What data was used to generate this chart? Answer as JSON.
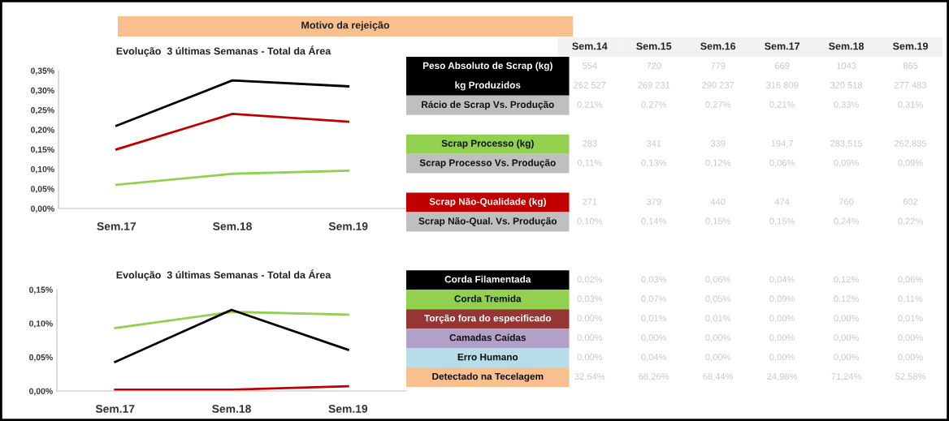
{
  "chart_data": [
    {
      "type": "line",
      "title": "Evolução  3 últimas Semanas - Total da Área",
      "annotations": [
        "Motivo da rejeição"
      ],
      "categories": [
        "Sem.17",
        "Sem.18",
        "Sem.19"
      ],
      "series": [
        {
          "color": "#000000",
          "values": [
            0.21,
            0.325,
            0.31
          ]
        },
        {
          "color": "#c00000",
          "values": [
            0.15,
            0.24,
            0.22
          ]
        },
        {
          "color": "#92d050",
          "values": [
            0.06,
            0.088,
            0.096
          ]
        }
      ],
      "ylim": [
        0,
        0.35
      ],
      "yticks": [
        {
          "value": 0,
          "label": "0,00%"
        },
        {
          "value": 0.05,
          "label": "0,05%"
        },
        {
          "value": 0.1,
          "label": "0,10%"
        },
        {
          "value": 0.15,
          "label": "0,15%"
        },
        {
          "value": 0.2,
          "label": "0,20%"
        },
        {
          "value": 0.25,
          "label": "0,25%"
        },
        {
          "value": 0.3,
          "label": "0,30%"
        },
        {
          "value": 0.35,
          "label": "0,35%"
        }
      ],
      "grid": false,
      "marker": "none",
      "line_style": "solid"
    },
    {
      "type": "line",
      "title": "Evolução  3 últimas Semanas - Total da Área",
      "categories": [
        "Sem.17",
        "Sem.18",
        "Sem.19"
      ],
      "series": [
        {
          "color": "#92d050",
          "values": [
            0.093,
            0.117,
            0.113
          ]
        },
        {
          "color": "#000000",
          "values": [
            0.043,
            0.12,
            0.061
          ]
        },
        {
          "color": "#c00000",
          "values": [
            0.002,
            0.002,
            0.007
          ]
        }
      ],
      "ylim": [
        0,
        0.15
      ],
      "yticks": [
        {
          "value": 0,
          "label": "0,00%"
        },
        {
          "value": 0.05,
          "label": "0,05%"
        },
        {
          "value": 0.1,
          "label": "0,10%"
        },
        {
          "value": 0.15,
          "label": "0,15%"
        }
      ],
      "grid": false,
      "marker": "none",
      "line_style": "solid"
    },
    {
      "type": "other",
      "categories": [
        "Sem.14",
        "Sem.15",
        "Sem.16",
        "Sem.17",
        "Sem.18",
        "Sem.19"
      ],
      "y_categories": [
        "Peso Absoluto de Scrap (kg)",
        "kg Produzidos",
        "Rácio de Scrap Vs. Produção",
        null,
        "Scrap Processo (kg)",
        "Scrap Processo Vs. Produção",
        null,
        "Scrap Não-Qualidade (kg)",
        "Scrap Não-Qual. Vs. Produção",
        null,
        null,
        "Corda Filamentada",
        "Corda Tremida",
        "Torção fora do especificado",
        "Camadas Caídas",
        "Erro Humano",
        "Detectado na Tecelagem"
      ],
      "cell_labels": [
        [
          "554",
          "720",
          "779",
          "669",
          "1043",
          "865"
        ],
        [
          "262 527",
          "269 231",
          "290 237",
          "316 809",
          "320 518",
          "277 483"
        ],
        [
          "0,21%",
          "0,27%",
          "0,27%",
          "0,21%",
          "0,33%",
          "0,31%"
        ],
        [
          null,
          null,
          null,
          null,
          null,
          null
        ],
        [
          "283",
          "341",
          "339",
          "194,7",
          "283,515",
          "262,835"
        ],
        [
          "0,11%",
          "0,13%",
          "0,12%",
          "0,06%",
          "0,09%",
          "0,09%"
        ],
        [
          null,
          null,
          null,
          null,
          null,
          null
        ],
        [
          "271",
          "379",
          "440",
          "474",
          "760",
          "602"
        ],
        [
          "0,10%",
          "0,14%",
          "0,15%",
          "0,15%",
          "0,24%",
          "0,22%"
        ],
        [
          null,
          null,
          null,
          null,
          null,
          null
        ],
        [
          null,
          null,
          null,
          null,
          null,
          null
        ],
        [
          "0,02%",
          "0,03%",
          "0,06%",
          "0,04%",
          "0,12%",
          "0,06%"
        ],
        [
          "0,03%",
          "0,07%",
          "0,05%",
          "0,09%",
          "0,12%",
          "0,11%"
        ],
        [
          "0,00%",
          "0,01%",
          "0,01%",
          "0,00%",
          "0,00%",
          "0,01%"
        ],
        [
          "0,00%",
          "0,00%",
          "0,00%",
          "0,00%",
          "0,00%",
          "0,00%"
        ],
        [
          "0,00%",
          "0,04%",
          "0,00%",
          "0,00%",
          "0,00%",
          "0,00%"
        ],
        [
          "32,64%",
          "68,26%",
          "68,44%",
          "24,98%",
          "71,24%",
          "52,58%"
        ]
      ]
    }
  ]
}
